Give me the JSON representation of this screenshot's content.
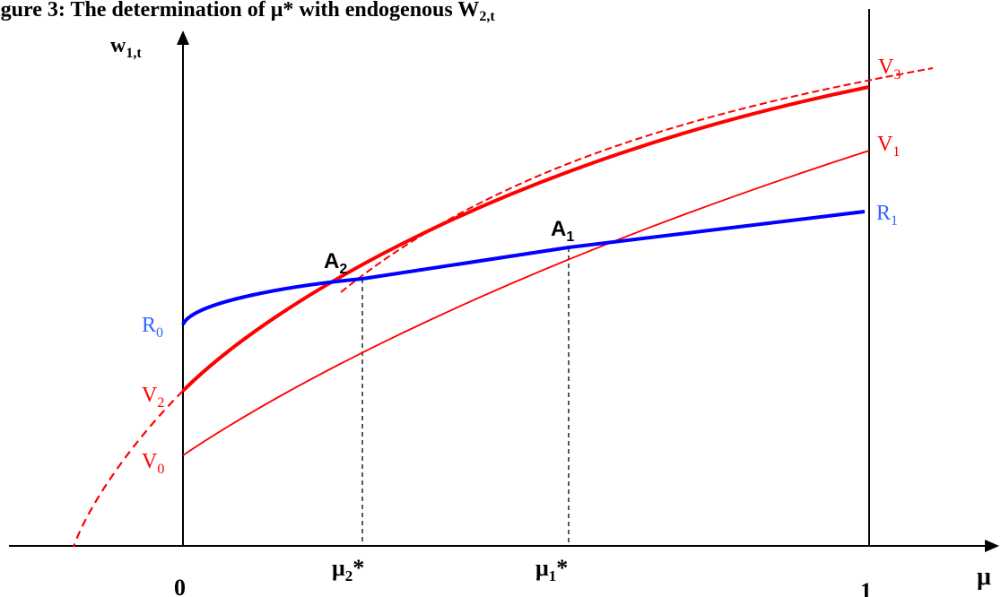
{
  "caption": "igure 3: The determination of μ* with endogenous W",
  "caption_sub": "2,t",
  "y_axis": {
    "label_main": "w",
    "label_sub": "1,t"
  },
  "x_axis": {
    "label": "μ"
  },
  "ticks": [
    {
      "id": "zero",
      "label": "0",
      "sub": "",
      "mu": 0
    },
    {
      "id": "mu2",
      "label": "μ",
      "sub": "2",
      "sup": "*",
      "mu": 0.2
    },
    {
      "id": "mu1",
      "label": "μ",
      "sub": "1",
      "sup": "*",
      "mu": 0.63
    },
    {
      "id": "one",
      "label": "1",
      "sub": "",
      "mu": 1
    }
  ],
  "curves": [
    {
      "id": "V0",
      "letter": "V",
      "sub": "0",
      "color": "#ff0000",
      "style": "thin"
    },
    {
      "id": "V1",
      "letter": "V",
      "sub": "1",
      "color": "#ff0000",
      "style": "thin"
    },
    {
      "id": "V2",
      "letter": "V",
      "sub": "2",
      "color": "#ff0000",
      "style": "thick-with-dashed-extension"
    },
    {
      "id": "V3",
      "letter": "V",
      "sub": "3",
      "color": "#ff0000",
      "style": "dashed"
    },
    {
      "id": "R0",
      "letter": "R",
      "sub": "0",
      "color": "#1f4fff",
      "style": "label-only"
    },
    {
      "id": "R1",
      "letter": "R",
      "sub": "1",
      "color": "#1f4fff",
      "style": "thick"
    }
  ],
  "points": [
    {
      "id": "A1",
      "letter": "A",
      "sub": "1"
    },
    {
      "id": "A2",
      "letter": "A",
      "sub": "2"
    }
  ],
  "colors": {
    "red": "#ff0000",
    "blue": "#0000ff",
    "blue_label": "#3366ff",
    "black": "#000000"
  }
}
